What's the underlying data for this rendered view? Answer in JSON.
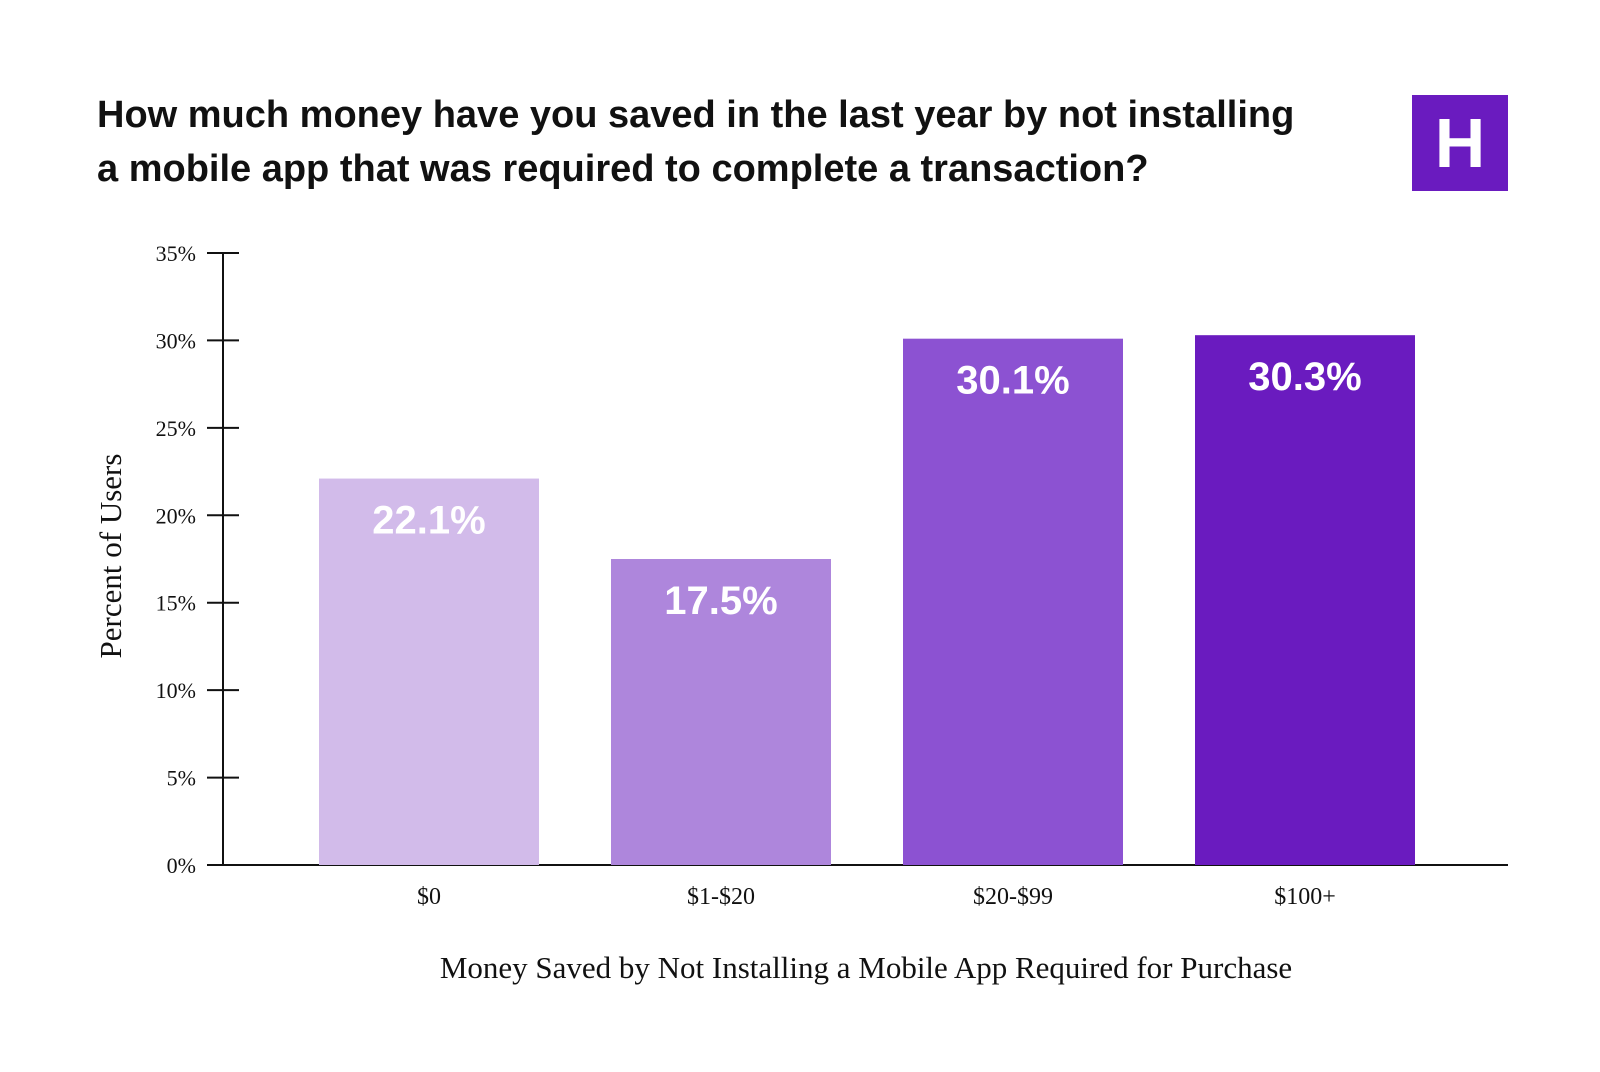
{
  "chart_data": {
    "type": "bar",
    "title": "How much money have you saved in the last year by not installing a mobile app that was required to complete a transaction?",
    "title_lines": [
      "How much money have you saved in the last year by not installing",
      "a mobile app that was required to complete a transaction?"
    ],
    "categories": [
      "$0",
      "$1-$20",
      "$20-$99",
      "$100+"
    ],
    "values": [
      22.1,
      17.5,
      30.1,
      30.3
    ],
    "data_labels": [
      "22.1%",
      "17.5%",
      "30.1%",
      "30.3%"
    ],
    "bar_colors": [
      "#d2bbea",
      "#ae86dc",
      "#8c52d2",
      "#6a1bbf"
    ],
    "xlabel": "Money Saved by Not Installing a Mobile App Required for Purchase",
    "ylabel": "Percent of Users",
    "ylim": [
      0,
      35
    ],
    "yticks": [
      0,
      5,
      10,
      15,
      20,
      25,
      30,
      35
    ],
    "ytick_labels": [
      "0%",
      "5%",
      "10%",
      "15%",
      "20%",
      "25%",
      "30%",
      "35%"
    ],
    "grid": false,
    "legend": "none"
  },
  "logo": {
    "text": "H",
    "color": "#6a1bbf"
  }
}
